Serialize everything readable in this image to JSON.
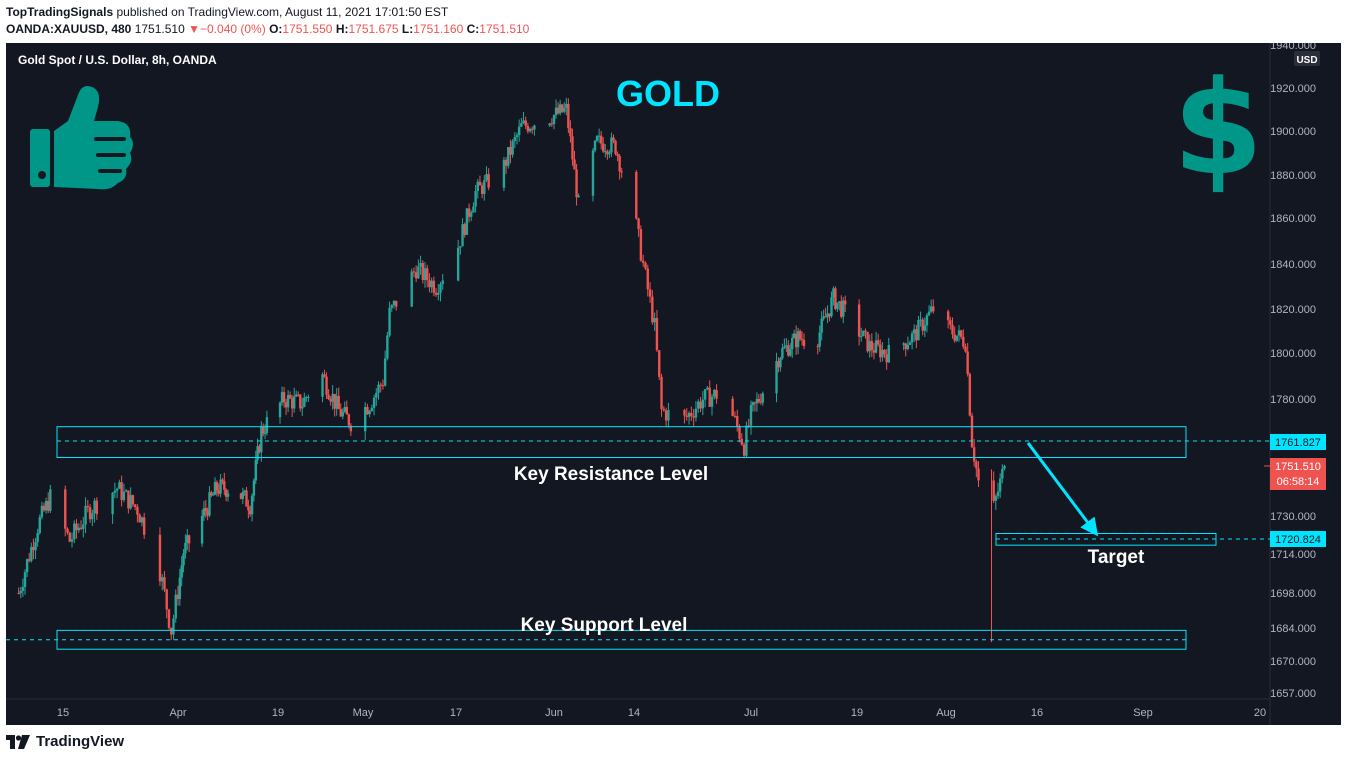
{
  "header": {
    "publisher": "TopTradingSignals",
    "published_text": "published on TradingView.com, August 11, 2021 17:01:50 EST",
    "symbol": "OANDA:XAUUSD, 480",
    "last": "1751.510",
    "change": "−0.040 (0%)",
    "o_label": "O:",
    "o_value": "1751.550",
    "h_label": "H:",
    "h_value": "1751.675",
    "l_label": "L:",
    "l_value": "1751.160",
    "c_label": "C:",
    "c_value": "1751.510"
  },
  "chart_data": {
    "type": "candlestick",
    "title": "GOLD",
    "subtitle": "Gold Spot / U.S. Dollar, 8h, OANDA",
    "currency": "USD",
    "y_ticks": [
      "1940.000",
      "1920.000",
      "1900.000",
      "1880.000",
      "1860.000",
      "1840.000",
      "1820.000",
      "1800.000",
      "1780.000",
      "1730.000",
      "1714.000",
      "1698.000",
      "1684.000",
      "1670.000",
      "1657.000"
    ],
    "x_ticks": [
      "15",
      "Apr",
      "19",
      "May",
      "17",
      "Jun",
      "14",
      "Jul",
      "19",
      "Aug",
      "16",
      "Sep",
      "20"
    ],
    "price_path": [
      [
        "2021-03-08",
        1698
      ],
      [
        "2021-03-11",
        1726
      ],
      [
        "2021-03-13",
        1738
      ],
      [
        "2021-03-16",
        1720
      ],
      [
        "2021-03-19",
        1733
      ],
      [
        "2021-03-23",
        1742
      ],
      [
        "2021-03-26",
        1733
      ],
      [
        "2021-03-29",
        1712
      ],
      [
        "2021-03-31",
        1683
      ],
      [
        "2021-04-02",
        1715
      ],
      [
        "2021-04-05",
        1728
      ],
      [
        "2021-04-08",
        1742
      ],
      [
        "2021-04-11",
        1742
      ],
      [
        "2021-04-14",
        1735
      ],
      [
        "2021-04-16",
        1766
      ],
      [
        "2021-04-20",
        1780
      ],
      [
        "2021-04-23",
        1778
      ],
      [
        "2021-04-26",
        1792
      ],
      [
        "2021-04-29",
        1775
      ],
      [
        "2021-05-01",
        1770
      ],
      [
        "2021-05-04",
        1778
      ],
      [
        "2021-05-06",
        1788
      ],
      [
        "2021-05-07",
        1818
      ],
      [
        "2021-05-11",
        1838
      ],
      [
        "2021-05-14",
        1830
      ],
      [
        "2021-05-17",
        1845
      ],
      [
        "2021-05-20",
        1872
      ],
      [
        "2021-05-24",
        1882
      ],
      [
        "2021-05-27",
        1902
      ],
      [
        "2021-05-31",
        1906
      ],
      [
        "2021-06-03",
        1910
      ],
      [
        "2021-06-05",
        1866
      ],
      [
        "2021-06-08",
        1895
      ],
      [
        "2021-06-11",
        1893
      ],
      [
        "2021-06-14",
        1862
      ],
      [
        "2021-06-17",
        1812
      ],
      [
        "2021-06-18",
        1775
      ],
      [
        "2021-06-21",
        1770
      ],
      [
        "2021-06-24",
        1780
      ],
      [
        "2021-06-27",
        1783
      ],
      [
        "2021-06-30",
        1760
      ],
      [
        "2021-07-01",
        1773
      ],
      [
        "2021-07-06",
        1800
      ],
      [
        "2021-07-09",
        1807
      ],
      [
        "2021-07-12",
        1805
      ],
      [
        "2021-07-15",
        1825
      ],
      [
        "2021-07-18",
        1815
      ],
      [
        "2021-07-21",
        1803
      ],
      [
        "2021-07-24",
        1800
      ],
      [
        "2021-07-28",
        1808
      ],
      [
        "2021-07-31",
        1820
      ],
      [
        "2021-08-02",
        1812
      ],
      [
        "2021-08-05",
        1805
      ],
      [
        "2021-08-06",
        1762
      ],
      [
        "2021-08-08",
        1727
      ],
      [
        "2021-08-09",
        1730
      ],
      [
        "2021-08-11",
        1751.51
      ]
    ],
    "annotations": {
      "resistance_label": "Key Resistance Level",
      "support_label": "Key Support Level",
      "target_label": "Target",
      "resistance_price": "1761.827",
      "target_price": "1720.824",
      "current_price": "1751.510",
      "countdown": "06:58:14"
    },
    "colors": {
      "up": "#26a69a",
      "down": "#ef5350",
      "zone": "#00e5ff",
      "title": "#00e5ff",
      "icon": "#009688",
      "background": "#131722"
    },
    "grid": false
  },
  "footer": {
    "brand": "TradingView"
  }
}
